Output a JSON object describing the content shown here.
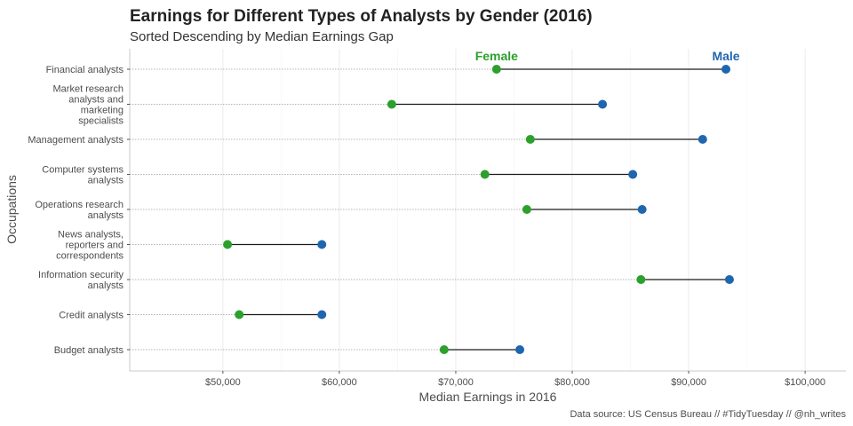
{
  "chart_data": {
    "type": "dumbbell",
    "title": "Earnings for Different Types of Analysts by Gender (2016)",
    "subtitle": "Sorted Descending by Median Earnings Gap",
    "xlabel": "Median Earnings in 2016",
    "ylabel": "Occupations",
    "caption": "Data source: US Census Bureau // #TidyTuesday // @nh_writes",
    "xlim": [
      42000,
      103500
    ],
    "x_ticks": [
      {
        "value": 50000,
        "label": "$50,000"
      },
      {
        "value": 60000,
        "label": "$60,000"
      },
      {
        "value": 70000,
        "label": "$70,000"
      },
      {
        "value": 80000,
        "label": "$80,000"
      },
      {
        "value": 90000,
        "label": "$90,000"
      },
      {
        "value": 100000,
        "label": "$100,000"
      }
    ],
    "grid": true,
    "series": [
      {
        "name": "Female",
        "color": "#2ca02c"
      },
      {
        "name": "Male",
        "color": "#1f66b0"
      }
    ],
    "categories": [
      {
        "label": [
          "Financial analysts"
        ],
        "female": 73500,
        "male": 93200
      },
      {
        "label": [
          "Market research",
          "analysts and",
          "marketing",
          "specialists"
        ],
        "female": 64500,
        "male": 82600
      },
      {
        "label": [
          "Management analysts"
        ],
        "female": 76400,
        "male": 91200
      },
      {
        "label": [
          "Computer systems",
          "analysts"
        ],
        "female": 72500,
        "male": 85200
      },
      {
        "label": [
          "Operations research",
          "analysts"
        ],
        "female": 76100,
        "male": 86000
      },
      {
        "label": [
          "News analysts,",
          "reporters and",
          "correspondents"
        ],
        "female": 50400,
        "male": 58500
      },
      {
        "label": [
          "Information security",
          "analysts"
        ],
        "female": 85900,
        "male": 93500
      },
      {
        "label": [
          "Credit analysts"
        ],
        "female": 51400,
        "male": 58500
      },
      {
        "label": [
          "Budget analysts"
        ],
        "female": 69000,
        "male": 75500
      }
    ]
  }
}
